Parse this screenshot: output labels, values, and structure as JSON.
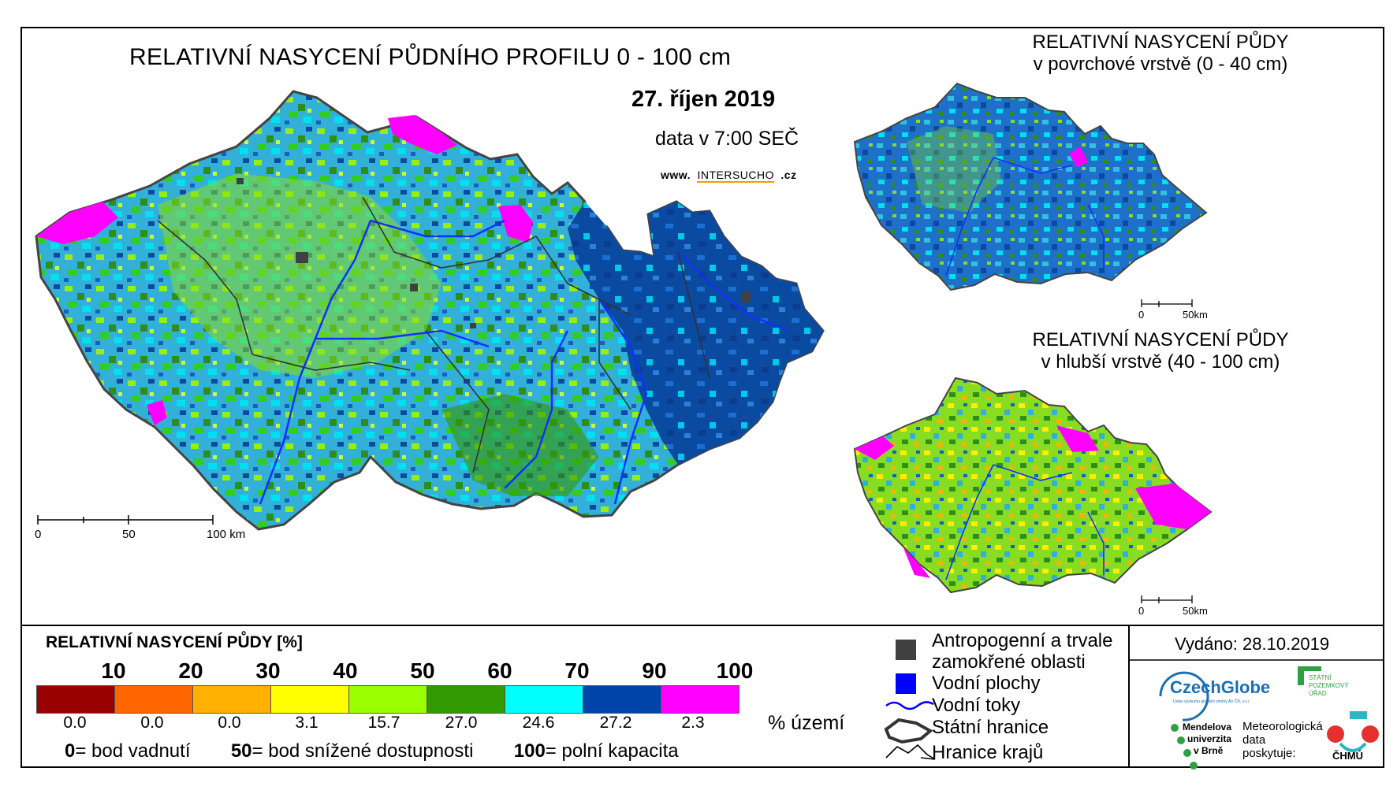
{
  "main_map": {
    "title": "RELATIVNÍ NASYCENÍ PŮDNÍHO PROFILU 0 - 100 cm",
    "date": "27. říjen 2019",
    "time_note": "data v 7:00 SEČ",
    "website_prefix": "www.",
    "website_name": "INTERSUCHO",
    "website_suffix": ".cz",
    "scale": {
      "labels": [
        "0",
        "50",
        "100 km"
      ]
    }
  },
  "inset_top": {
    "title_line1": "RELATIVNÍ NASYCENÍ PŮDY",
    "title_line2": "v povrchové vrstvě (0 - 40 cm)",
    "scale": {
      "labels": [
        "0",
        "50km"
      ]
    }
  },
  "inset_bottom": {
    "title_line1": "RELATIVNÍ NASYCENÍ PŮDY",
    "title_line2": "v hlubší vrstvě (40 - 100 cm)",
    "scale": {
      "labels": [
        "0",
        "50km"
      ]
    }
  },
  "legend": {
    "title": "RELATIVNÍ NASYCENÍ PŮDY [%]",
    "ticks": [
      "10",
      "20",
      "30",
      "40",
      "50",
      "60",
      "70",
      "90",
      "100"
    ],
    "classes": [
      {
        "color": "#990000",
        "percent": "0.0"
      },
      {
        "color": "#ff6600",
        "percent": "0.0"
      },
      {
        "color": "#ffb000",
        "percent": "0.0"
      },
      {
        "color": "#ffff00",
        "percent": "3.1"
      },
      {
        "color": "#99ff00",
        "percent": "15.7"
      },
      {
        "color": "#339900",
        "percent": "27.0"
      },
      {
        "color": "#00ffff",
        "percent": "24.6"
      },
      {
        "color": "#0044aa",
        "percent": "27.2"
      },
      {
        "color": "#ff00ff",
        "percent": "2.3"
      }
    ],
    "unit_label": "% území",
    "footnote": [
      {
        "value": "0",
        "text": "= bod vadnutí"
      },
      {
        "value": "50",
        "text": "= bod snížené dostupnosti"
      },
      {
        "value": "100",
        "text": "= polní kapacita"
      }
    ]
  },
  "map_key": {
    "anthropogenic_line1": "Antropogenní a trvale",
    "anthropogenic_line2": "zamokřené oblasti",
    "water_bodies": "Vodní plochy",
    "rivers": "Vodní toky",
    "state_border": "Státní hranice",
    "region_border": "Hranice krajů"
  },
  "issued": "Vydáno: 28.10.2019",
  "logos": {
    "czechglobe": "CzechGlobe",
    "czechglobe_sub": "Ústav výzkumu globální změny AV ČR, v.v.i.",
    "spu": [
      "STÁTNÍ",
      "POZEMKOVÝ",
      "ÚŘAD"
    ],
    "mendel": [
      "Mendelova",
      "univerzita",
      "v Brně"
    ],
    "meteo_note": [
      "Meteorologická",
      "data",
      "poskytuje:"
    ],
    "chmu": "ČHMÚ"
  },
  "colors": {
    "anthropogenic": "#404040",
    "water_bodies": "#0000ff",
    "rivers": "#0000ff",
    "czechglobe_blue": "#1a6fb5",
    "spu_green": "#2ea043",
    "chmu_red": "#e53030",
    "chmu_teal": "#2bb5c5"
  }
}
